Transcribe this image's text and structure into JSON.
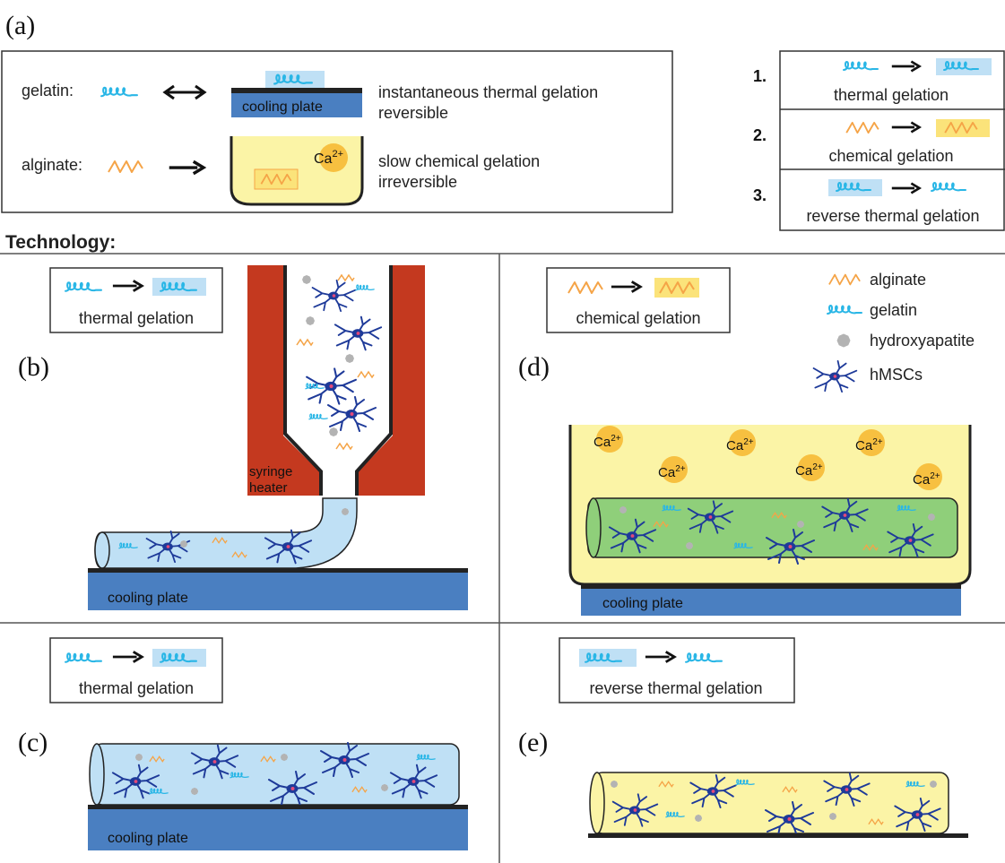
{
  "labels": {
    "a": "(a)",
    "b": "(b)",
    "c": "(c)",
    "d": "(d)",
    "e": "(e)"
  },
  "overview": {
    "gelatin_label": "gelatin:",
    "alginate_label": "alginate:",
    "cooling_plate": "cooling plate",
    "ca_ion": "Ca",
    "ca_charge": "2+",
    "gelatin_desc1": "instantaneous thermal gelation",
    "gelatin_desc2": "reversible",
    "alginate_desc1": "slow chemical gelation",
    "alginate_desc2": "irreversible"
  },
  "steps": [
    {
      "num": "1.",
      "label": "thermal gelation"
    },
    {
      "num": "2.",
      "label": "chemical gelation"
    },
    {
      "num": "3.",
      "label": "reverse thermal gelation"
    }
  ],
  "technology_heading": "Technology:",
  "panel_b": {
    "box_label": "thermal gelation",
    "syringe_label": "syringe",
    "heater_label": "heater",
    "plate_label": "cooling plate"
  },
  "panel_c": {
    "box_label": "thermal gelation",
    "plate_label": "cooling plate"
  },
  "panel_d": {
    "box_label": "chemical gelation",
    "plate_label": "cooling plate",
    "ca_ion": "Ca",
    "ca_charge": "2+"
  },
  "panel_e": {
    "box_label": "reverse thermal gelation"
  },
  "legend": [
    {
      "icon": "alginate-icon",
      "label": "alginate"
    },
    {
      "icon": "gelatin-icon",
      "label": "gelatin"
    },
    {
      "icon": "hydroxyapatite-icon",
      "label": "hydroxyapatite"
    },
    {
      "icon": "hmsc-icon",
      "label": "hMSCs"
    }
  ],
  "colors": {
    "gelatin": "#29b6e6",
    "alginate": "#f5a447",
    "cooling_plate": "#4a7fc1",
    "heater": "#c4391f",
    "gel_fill": "#bfe0f5",
    "alginate_fill": "#fbf4a6",
    "combined_fill": "#8fcf7a",
    "cell": "#1e3a99",
    "hydroxyapatite": "#b3b3b3",
    "calcium": "#f7c040"
  }
}
